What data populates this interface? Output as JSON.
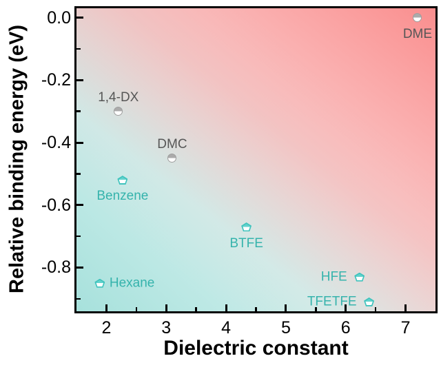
{
  "figure": {
    "background_color": "#ffffff",
    "frame_color": "#000000",
    "tick_color": "#000000",
    "tick_label_color": "#000000",
    "gradient": {
      "pink_corner": "#f98f8f",
      "teal_corner": "#aee3df",
      "middle": "#ffffff",
      "description": "diagonal gradient, pink at top-right fading through white to teal at bottom-left"
    }
  },
  "chart_data": {
    "type": "scatter",
    "title": "",
    "xlabel": "Dielectric constant",
    "ylabel": "Relative binding energy (eV)",
    "xlim": [
      1.5,
      7.5
    ],
    "ylim": [
      -0.94,
      0.03
    ],
    "grid": false,
    "legend": null,
    "x_major_ticks": [
      2,
      3,
      4,
      5,
      6,
      7
    ],
    "x_minor_ticks": [
      2.5,
      3.5,
      4.5,
      5.5,
      6.5
    ],
    "y_major_ticks": [
      0.0,
      -0.2,
      -0.4,
      -0.6,
      -0.8
    ],
    "y_minor_ticks": [
      -0.1,
      -0.3,
      -0.5,
      -0.7,
      -0.9
    ],
    "x_tick_labels": [
      "2",
      "3",
      "4",
      "5",
      "6",
      "7"
    ],
    "y_tick_labels": [
      "0.0",
      "-0.2",
      "-0.4",
      "-0.6",
      "-0.8"
    ],
    "series": [
      {
        "name": "gray-solvents",
        "marker": "circle-half-top",
        "marker_fill": "#ababab",
        "marker_stroke": "#9e9e9e",
        "label_color": "#565656",
        "points": [
          {
            "label": "DME",
            "x": 7.2,
            "y": 0.0,
            "label_pos": "below"
          },
          {
            "label": "1,4-DX",
            "x": 2.2,
            "y": -0.3,
            "label_pos": "above"
          },
          {
            "label": "DMC",
            "x": 3.1,
            "y": -0.45,
            "label_pos": "above"
          }
        ]
      },
      {
        "name": "teal-solvents",
        "marker": "pentagon-half-top",
        "marker_fill": "#62d2cc",
        "marker_stroke": "#3fc3bd",
        "label_color": "#35b3ac",
        "points": [
          {
            "label": "Benzene",
            "x": 2.27,
            "y": -0.52,
            "label_pos": "below"
          },
          {
            "label": "Hexane",
            "x": 1.89,
            "y": -0.85,
            "label_pos": "right"
          },
          {
            "label": "BTFE",
            "x": 4.34,
            "y": -0.67,
            "label_pos": "below"
          },
          {
            "label": "HFE",
            "x": 6.23,
            "y": -0.83,
            "label_pos": "left"
          },
          {
            "label": "TFETFE",
            "x": 6.39,
            "y": -0.91,
            "label_pos": "left"
          }
        ]
      }
    ]
  }
}
